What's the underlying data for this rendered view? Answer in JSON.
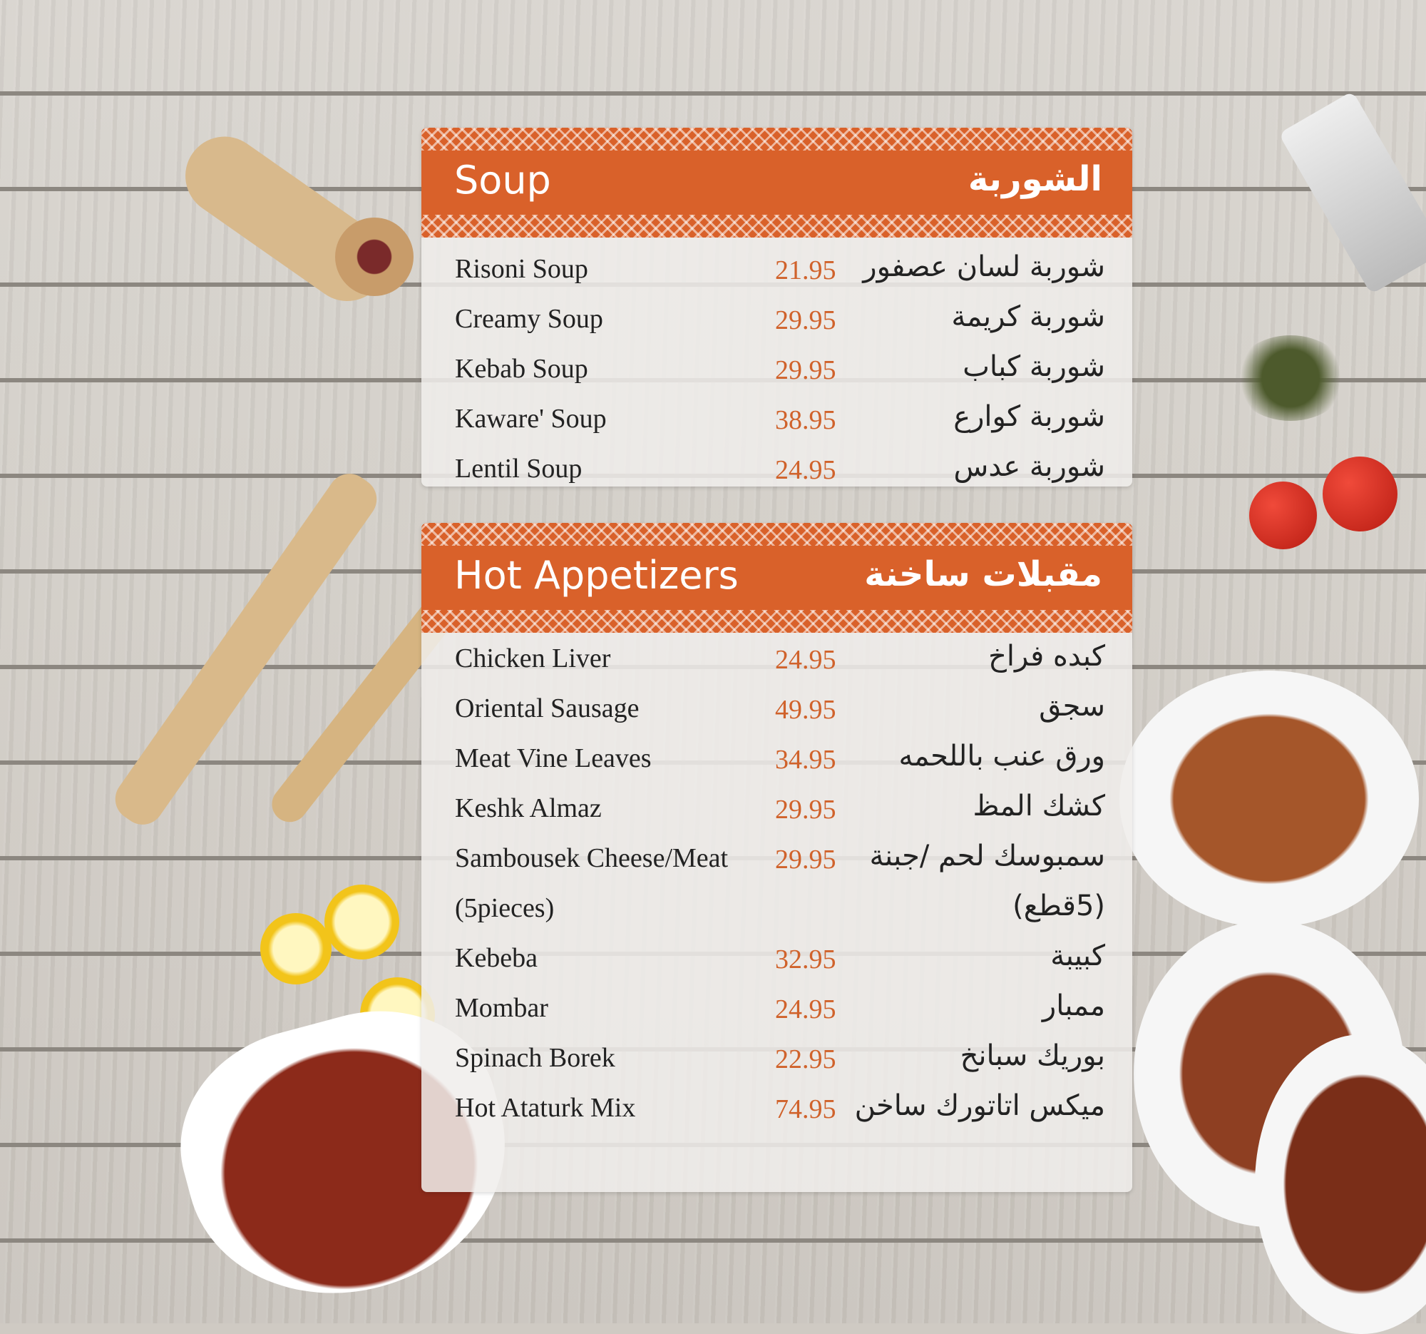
{
  "colors": {
    "accent": "#d9612a",
    "price": "#d0622b"
  },
  "sections": [
    {
      "title_en": "Soup",
      "title_ar": "الشوربة",
      "items": [
        {
          "en": "Risoni Soup",
          "price": "21.95",
          "ar": "شوربة لسان عصفور"
        },
        {
          "en": "Creamy Soup",
          "price": "29.95",
          "ar": "شوربة كريمة"
        },
        {
          "en": "Kebab Soup",
          "price": "29.95",
          "ar": "شوربة كباب"
        },
        {
          "en": "Kaware' Soup",
          "price": "38.95",
          "ar": "شوربة كوارع"
        },
        {
          "en": "Lentil Soup",
          "price": "24.95",
          "ar": "شوربة عدس"
        }
      ]
    },
    {
      "title_en": "Hot Appetizers",
      "title_ar": "مقبلات ساخنة",
      "items": [
        {
          "en": "Chicken Liver",
          "price": "24.95",
          "ar": "كبده فراخ"
        },
        {
          "en": "Oriental Sausage",
          "price": "49.95",
          "ar": "سجق"
        },
        {
          "en": "Meat Vine Leaves",
          "price": "34.95",
          "ar": "ورق عنب باللحمه"
        },
        {
          "en": "Keshk Almaz",
          "price": "29.95",
          "ar": "كشك المظ"
        },
        {
          "en": "Sambousek Cheese/Meat",
          "price": "29.95",
          "ar": "سمبوسك لحم /جبنة"
        },
        {
          "en": "(5pieces)",
          "price": "",
          "ar": "(5قطع)"
        },
        {
          "en": "Kebeba",
          "price": "32.95",
          "ar": "كبيبة"
        },
        {
          "en": "Mombar",
          "price": "24.95",
          "ar": "ممبار"
        },
        {
          "en": "Spinach Borek",
          "price": "22.95",
          "ar": "بوريك سبانخ"
        },
        {
          "en": "Hot Ataturk Mix",
          "price": "74.95",
          "ar": "ميكس اتاتورك ساخن"
        }
      ]
    }
  ]
}
